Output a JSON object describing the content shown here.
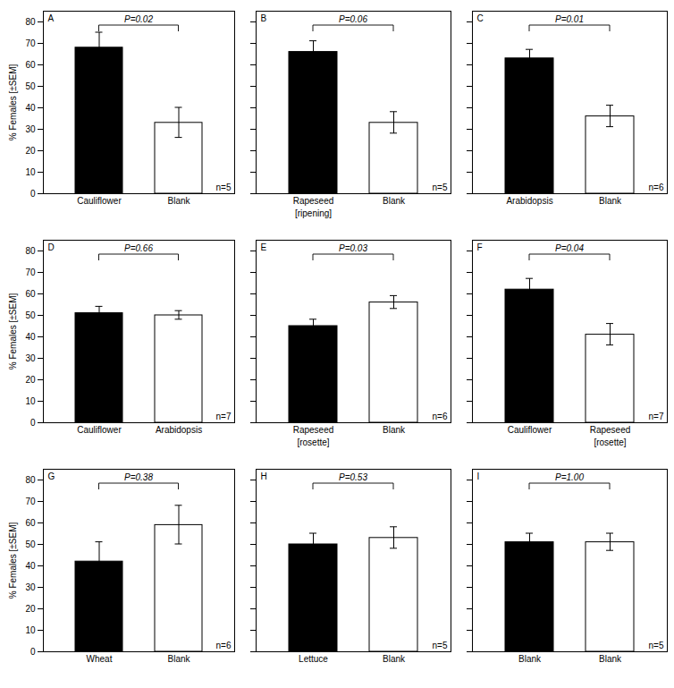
{
  "chart_data": [
    {
      "type": "bar",
      "title": "A",
      "categories": [
        "Cauliflower",
        "Blank"
      ],
      "values": [
        68,
        33
      ],
      "sem": [
        7,
        7
      ],
      "colors": [
        "black",
        "white"
      ],
      "ylim": [
        0,
        85
      ],
      "yticks": [
        0,
        10,
        20,
        30,
        40,
        50,
        60,
        70,
        80
      ],
      "y_label": "% Females [±SEM]",
      "p_value": "P=0.02",
      "n": "n=5"
    },
    {
      "type": "bar",
      "title": "B",
      "categories": [
        "Rapeseed",
        "Blank"
      ],
      "values": [
        66,
        33
      ],
      "sem": [
        5,
        5
      ],
      "colors": [
        "black",
        "white"
      ],
      "ylim": [
        0,
        85
      ],
      "yticks": [
        0,
        10,
        20,
        30,
        40,
        50,
        60,
        70,
        80
      ],
      "tick_labels": "x",
      "p_value": "P=0.06",
      "n": "n=5",
      "sub_labels": [
        "[ripening]",
        null
      ]
    },
    {
      "type": "bar",
      "title": "C",
      "categories": [
        "Arabidopsis",
        "Blank"
      ],
      "values": [
        63,
        36
      ],
      "sem": [
        4,
        5
      ],
      "colors": [
        "black",
        "white"
      ],
      "ylim": [
        0,
        85
      ],
      "yticks": [
        0,
        10,
        20,
        30,
        40,
        50,
        60,
        70,
        80
      ],
      "tick_labels": "x",
      "p_value": "P=0.01",
      "n": "n=6"
    },
    {
      "type": "bar",
      "title": "D",
      "categories": [
        "Cauliflower",
        "Arabidopsis"
      ],
      "values": [
        51,
        50
      ],
      "sem": [
        3,
        2
      ],
      "colors": [
        "black",
        "white"
      ],
      "ylim": [
        0,
        85
      ],
      "yticks": [
        0,
        10,
        20,
        30,
        40,
        50,
        60,
        70,
        80
      ],
      "y_label": "% Females [±SEM]",
      "p_value": "P=0.66",
      "n": "n=7"
    },
    {
      "type": "bar",
      "title": "E",
      "categories": [
        "Rapeseed",
        "Blank"
      ],
      "values": [
        45,
        56
      ],
      "sem": [
        3,
        3
      ],
      "colors": [
        "black",
        "white"
      ],
      "ylim": [
        0,
        85
      ],
      "yticks": [
        0,
        10,
        20,
        30,
        40,
        50,
        60,
        70,
        80
      ],
      "tick_labels": "x",
      "p_value": "P=0.03",
      "n": "n=6",
      "sub_labels": [
        "[rosette]",
        null
      ]
    },
    {
      "type": "bar",
      "title": "F",
      "categories": [
        "Cauliflower",
        "Rapeseed"
      ],
      "values": [
        62,
        41
      ],
      "sem": [
        5,
        5
      ],
      "colors": [
        "black",
        "white"
      ],
      "ylim": [
        0,
        85
      ],
      "yticks": [
        0,
        10,
        20,
        30,
        40,
        50,
        60,
        70,
        80
      ],
      "tick_labels": "x",
      "p_value": "P=0.04",
      "n": "n=7",
      "sub_labels": [
        null,
        "[rosette]"
      ]
    },
    {
      "type": "bar",
      "title": "G",
      "categories": [
        "Wheat",
        "Blank"
      ],
      "values": [
        42,
        59
      ],
      "sem": [
        9,
        9
      ],
      "colors": [
        "black",
        "white"
      ],
      "ylim": [
        0,
        85
      ],
      "yticks": [
        0,
        10,
        20,
        30,
        40,
        50,
        60,
        70,
        80
      ],
      "y_label": "% Females [±SEM]",
      "p_value": "P=0.38",
      "n": "n=6"
    },
    {
      "type": "bar",
      "title": "H",
      "categories": [
        "Lettuce",
        "Blank"
      ],
      "values": [
        50,
        53
      ],
      "sem": [
        5,
        5
      ],
      "colors": [
        "black",
        "white"
      ],
      "ylim": [
        0,
        85
      ],
      "yticks": [
        0,
        10,
        20,
        30,
        40,
        50,
        60,
        70,
        80
      ],
      "tick_labels": "x",
      "p_value": "P=0.53",
      "n": "n=5"
    },
    {
      "type": "bar",
      "title": "I",
      "categories": [
        "Blank",
        "Blank"
      ],
      "values": [
        51,
        51
      ],
      "sem": [
        4,
        4
      ],
      "colors": [
        "black",
        "white"
      ],
      "ylim": [
        0,
        85
      ],
      "yticks": [
        0,
        10,
        20,
        30,
        40,
        50,
        60,
        70,
        80
      ],
      "tick_labels": "x",
      "p_value": "P=1.00",
      "n": "n=5"
    }
  ]
}
